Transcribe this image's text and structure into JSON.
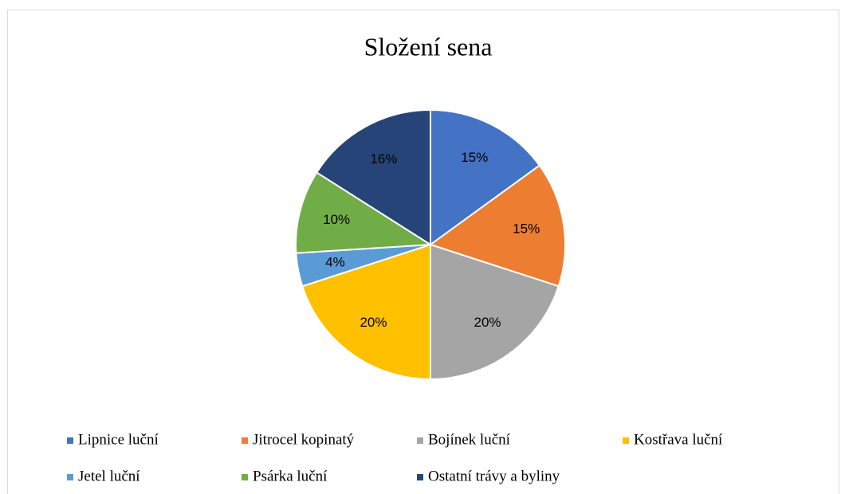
{
  "chart_data": {
    "type": "pie",
    "title": "Složení sena",
    "categories": [
      "Lipnice luční",
      "Jitrocel kopinatý",
      "Bojínek luční",
      "Kostřava luční",
      "Jetel luční",
      "Psárka luční",
      "Ostatní trávy a byliny"
    ],
    "values": [
      15,
      15,
      20,
      20,
      4,
      10,
      16
    ],
    "value_labels": [
      "15%",
      "15%",
      "20%",
      "20%",
      "4%",
      "10%",
      "16%"
    ],
    "colors": [
      "#4472c4",
      "#ed7d31",
      "#a5a5a5",
      "#ffc000",
      "#5b9bd5",
      "#70ad47",
      "#264478"
    ],
    "legend": "bottom"
  }
}
